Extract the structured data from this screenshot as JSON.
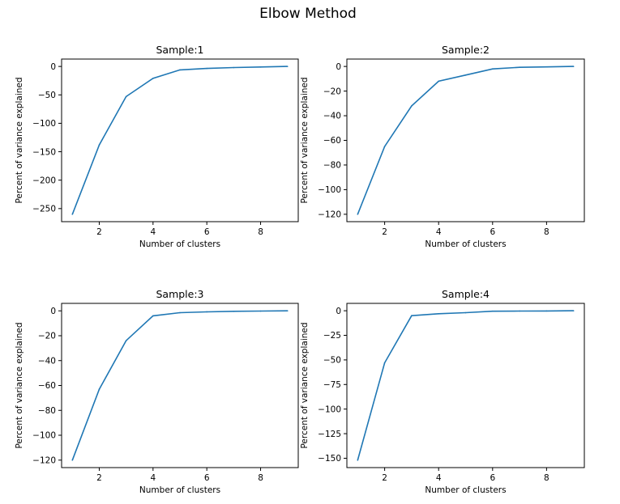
{
  "figure": {
    "title": "Elbow Method"
  },
  "colors": {
    "line": "#1f77b4",
    "axis": "#000000",
    "background": "#ffffff"
  },
  "chart_data": [
    {
      "type": "line",
      "title": "Sample:1",
      "xlabel": "Number of clusters",
      "ylabel": "Percent of variance explained",
      "x": [
        1,
        2,
        3,
        4,
        5,
        6,
        7,
        8,
        9
      ],
      "series": [
        {
          "values": [
            -260,
            -138,
            -53,
            -21,
            -6,
            -3.5,
            -2,
            -1,
            0
          ]
        }
      ],
      "xlim": [
        0.6,
        9.4
      ],
      "ylim": [
        -273,
        13
      ],
      "xticks": [
        2,
        4,
        6,
        8
      ],
      "yticks": [
        0,
        -50,
        -100,
        -150,
        -200,
        -250
      ],
      "ytick_labels": [
        "0",
        "−50",
        "−100",
        "−150",
        "−200",
        "−250"
      ],
      "grid": false
    },
    {
      "type": "line",
      "title": "Sample:2",
      "xlabel": "Number of clusters",
      "ylabel": "Percent of variance explained",
      "x": [
        1,
        2,
        3,
        4,
        5,
        6,
        7,
        8,
        9
      ],
      "series": [
        {
          "values": [
            -120,
            -65,
            -32,
            -12,
            -7,
            -2,
            -0.7,
            -0.4,
            0
          ]
        }
      ],
      "xlim": [
        0.6,
        9.4
      ],
      "ylim": [
        -126,
        6
      ],
      "xticks": [
        2,
        4,
        6,
        8
      ],
      "yticks": [
        0,
        -20,
        -40,
        -60,
        -80,
        -100,
        -120
      ],
      "ytick_labels": [
        "0",
        "−20",
        "−40",
        "−60",
        "−80",
        "−100",
        "−120"
      ],
      "grid": false
    },
    {
      "type": "line",
      "title": "Sample:3",
      "xlabel": "Number of clusters",
      "ylabel": "Percent of variance explained",
      "x": [
        1,
        2,
        3,
        4,
        5,
        6,
        7,
        8,
        9
      ],
      "series": [
        {
          "values": [
            -120,
            -63,
            -24,
            -4,
            -1.5,
            -0.8,
            -0.4,
            -0.2,
            0
          ]
        }
      ],
      "xlim": [
        0.6,
        9.4
      ],
      "ylim": [
        -126,
        6
      ],
      "xticks": [
        2,
        4,
        6,
        8
      ],
      "yticks": [
        0,
        -20,
        -40,
        -60,
        -80,
        -100,
        -120
      ],
      "ytick_labels": [
        "0",
        "−20",
        "−40",
        "−60",
        "−80",
        "−100",
        "−120"
      ],
      "grid": false
    },
    {
      "type": "line",
      "title": "Sample:4",
      "xlabel": "Number of clusters",
      "ylabel": "Percent of variance explained",
      "x": [
        1,
        2,
        3,
        4,
        5,
        6,
        7,
        8,
        9
      ],
      "series": [
        {
          "values": [
            -152,
            -53,
            -5,
            -3,
            -2,
            -0.5,
            -0.3,
            -0.2,
            0
          ]
        }
      ],
      "xlim": [
        0.6,
        9.4
      ],
      "ylim": [
        -159.5,
        7.5
      ],
      "xticks": [
        2,
        4,
        6,
        8
      ],
      "yticks": [
        0,
        -25,
        -50,
        -75,
        -100,
        -125,
        -150
      ],
      "ytick_labels": [
        "0",
        "−25",
        "−50",
        "−75",
        "−100",
        "−125",
        "−150"
      ],
      "grid": false
    }
  ]
}
